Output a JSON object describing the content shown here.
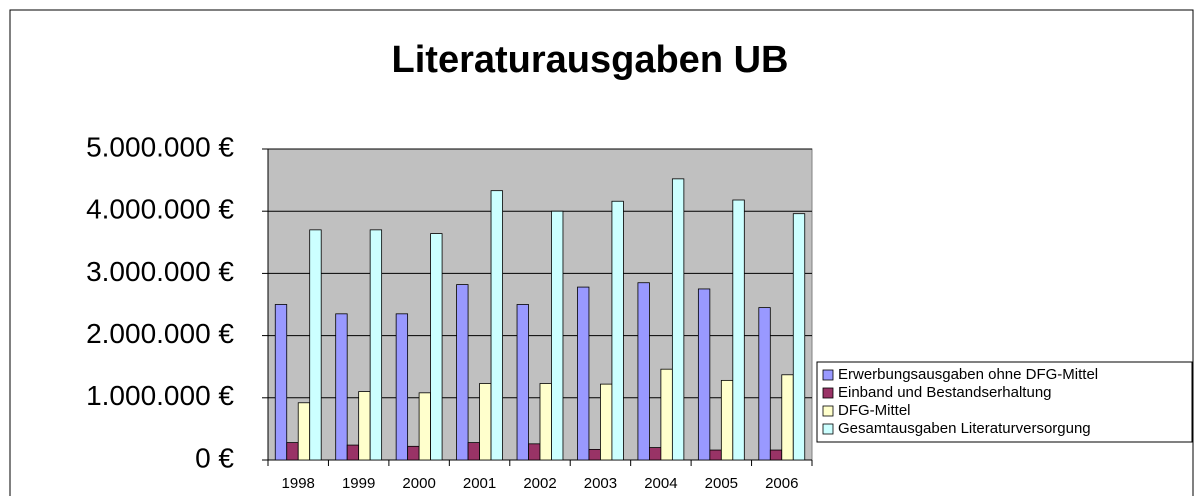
{
  "chart_data": {
    "type": "bar",
    "title": "Literaturausgaben UB",
    "categories": [
      "1998",
      "1999",
      "2000",
      "2001",
      "2002",
      "2003",
      "2004",
      "2005",
      "2006"
    ],
    "series": [
      {
        "name": "Erwerbungsausgaben ohne DFG-Mittel",
        "color": "#9999ff",
        "values": [
          2500000,
          2350000,
          2350000,
          2820000,
          2500000,
          2780000,
          2850000,
          2750000,
          2450000
        ]
      },
      {
        "name": "Einband und Bestandserhaltung",
        "color": "#993366",
        "values": [
          280000,
          240000,
          220000,
          280000,
          260000,
          170000,
          200000,
          160000,
          160000
        ]
      },
      {
        "name": "DFG-Mittel",
        "color": "#ffffcc",
        "values": [
          920000,
          1100000,
          1080000,
          1230000,
          1230000,
          1220000,
          1460000,
          1280000,
          1370000
        ]
      },
      {
        "name": "Gesamtausgaben Literaturversorgung",
        "color": "#ccffff",
        "values": [
          3700000,
          3700000,
          3640000,
          4330000,
          4000000,
          4160000,
          4520000,
          4180000,
          3960000
        ]
      }
    ],
    "ylim": [
      0,
      5000000
    ],
    "yticks": [
      {
        "value": 0,
        "label": "0 €"
      },
      {
        "value": 1000000,
        "label": "1.000.000 €"
      },
      {
        "value": 2000000,
        "label": "2.000.000 €"
      },
      {
        "value": 3000000,
        "label": "3.000.000 €"
      },
      {
        "value": 4000000,
        "label": "4.000.000 €"
      },
      {
        "value": 5000000,
        "label": "5.000.000 €"
      }
    ],
    "grid": true,
    "legend": "right",
    "plot_background": "#c0c0c0"
  }
}
